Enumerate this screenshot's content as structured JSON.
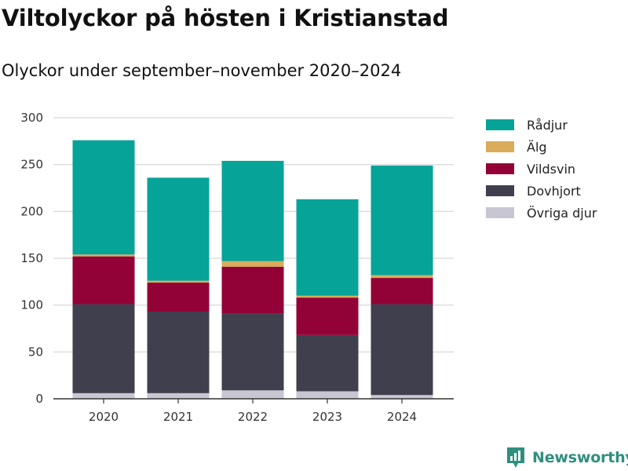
{
  "header": {
    "title": "Viltolyckor på hösten i Kristianstad",
    "subtitle": "Olyckor under september–november 2020–2024"
  },
  "brand": {
    "name": "Newsworthy",
    "icon": "newsworthy-logo-icon",
    "color": "#2f8f7e"
  },
  "chart_data": {
    "type": "bar",
    "stacked": true,
    "title": "Viltolyckor på hösten i Kristianstad",
    "subtitle": "Olyckor under september–november 2020–2024",
    "xlabel": "",
    "ylabel": "",
    "categories": [
      "2020",
      "2021",
      "2022",
      "2023",
      "2024"
    ],
    "ylim": [
      0,
      300
    ],
    "yticks": [
      0,
      50,
      100,
      150,
      200,
      250,
      300
    ],
    "grid": true,
    "legend_position": "right",
    "series": [
      {
        "name": "Övriga djur",
        "color": "#c7c6d2",
        "values": [
          6,
          6,
          9,
          8,
          4
        ]
      },
      {
        "name": "Dovhjort",
        "color": "#403f4e",
        "values": [
          95,
          87,
          82,
          60,
          97
        ]
      },
      {
        "name": "Vildsvin",
        "color": "#930236",
        "values": [
          51,
          31,
          50,
          40,
          28
        ]
      },
      {
        "name": "Älg",
        "color": "#d9ab5a",
        "values": [
          2,
          2,
          6,
          2,
          3
        ]
      },
      {
        "name": "Rådjur",
        "color": "#06a399",
        "values": [
          122,
          110,
          107,
          103,
          117
        ]
      }
    ],
    "legend_order": [
      "Rådjur",
      "Älg",
      "Vildsvin",
      "Dovhjort",
      "Övriga djur"
    ]
  }
}
